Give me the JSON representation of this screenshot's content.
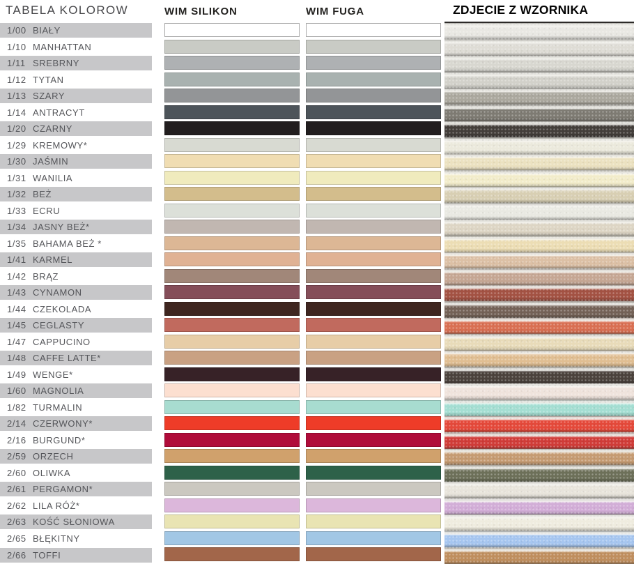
{
  "headers": {
    "tabela": "TABELA KOLOROW",
    "silikon": "WIM SILIKON",
    "fuga": "WIM FUGA",
    "photo": "ZDJECIE Z WZORNIKA"
  },
  "palette": {
    "label_bar_gray": "#c7c7c9",
    "label_text": "#55565a",
    "white_swatch_border": "#a8a8a8",
    "photo_top_line": "#2c2a28"
  },
  "rows": [
    {
      "code": "1/00",
      "name": "BIAŁY",
      "silikon": "#ffffff",
      "fuga": "#ffffff",
      "photo": "#e9e8e3"
    },
    {
      "code": "1/10",
      "name": "MANHATTAN",
      "silikon": "#c9cbc5",
      "fuga": "#c9cbc5",
      "photo": "#dedcd5"
    },
    {
      "code": "1/11",
      "name": "SREBRNY",
      "silikon": "#aeb1b3",
      "fuga": "#aeb1b3",
      "photo": "#d8d7d0"
    },
    {
      "code": "1/12",
      "name": "TYTAN",
      "silikon": "#a9b2b0",
      "fuga": "#a9b2b0",
      "photo": "#d2d1ca"
    },
    {
      "code": "1/13",
      "name": "SZARY",
      "silikon": "#939597",
      "fuga": "#939597",
      "photo": "#aba89e"
    },
    {
      "code": "1/14",
      "name": "ANTRACYT",
      "silikon": "#4d545a",
      "fuga": "#4d545a",
      "photo": "#7e7b73"
    },
    {
      "code": "1/20",
      "name": "CZARNY",
      "silikon": "#221e1f",
      "fuga": "#221e1f",
      "photo": "#433e3a"
    },
    {
      "code": "1/29",
      "name": "KREMOWY*",
      "silikon": "#d8dad2",
      "fuga": "#d8dad2",
      "photo": "#ebe9dc"
    },
    {
      "code": "1/30",
      "name": "JAŚMIN",
      "silikon": "#f0ddb2",
      "fuga": "#f0ddb2",
      "photo": "#ebe1c0"
    },
    {
      "code": "1/31",
      "name": "WANILIA",
      "silikon": "#f0ebbd",
      "fuga": "#f0ebbd",
      "photo": "#f2ecca"
    },
    {
      "code": "1/32",
      "name": "BEŻ",
      "silikon": "#d3bd8c",
      "fuga": "#d3bd8c",
      "photo": "#d8cfb3"
    },
    {
      "code": "1/33",
      "name": "ECRU",
      "silikon": "#dce0d9",
      "fuga": "#dce0d9",
      "photo": "#e9e9e2"
    },
    {
      "code": "1/34",
      "name": "JASNY BEŻ*",
      "silikon": "#c1b7b1",
      "fuga": "#c1b7b1",
      "photo": "#ddd5c4"
    },
    {
      "code": "1/35",
      "name": "BAHAMA BEŻ *",
      "silikon": "#dcb795",
      "fuga": "#dcb795",
      "photo": "#ecddb4"
    },
    {
      "code": "1/41",
      "name": "KARMEL",
      "silikon": "#e0b294",
      "fuga": "#e0b294",
      "photo": "#dcc0a5"
    },
    {
      "code": "1/42",
      "name": "BRĄZ",
      "silikon": "#a18779",
      "fuga": "#a18779",
      "photo": "#c5a693"
    },
    {
      "code": "1/43",
      "name": "CYNAMON",
      "silikon": "#854e59",
      "fuga": "#854e59",
      "photo": "#a35243"
    },
    {
      "code": "1/44",
      "name": "CZEKOLADA",
      "silikon": "#3f2620",
      "fuga": "#3f2620",
      "photo": "#746257"
    },
    {
      "code": "1/45",
      "name": "CEGLASTY",
      "silikon": "#c16a5e",
      "fuga": "#c16a5e",
      "photo": "#d96f52"
    },
    {
      "code": "1/47",
      "name": "CAPPUCINO",
      "silikon": "#e7cda7",
      "fuga": "#e7cda7",
      "photo": "#e8dbb9"
    },
    {
      "code": "1/48",
      "name": "CAFFE LATTE*",
      "silikon": "#c9a183",
      "fuga": "#c9a183",
      "photo": "#e0be92"
    },
    {
      "code": "1/49",
      "name": "WENGE*",
      "silikon": "#372227",
      "fuga": "#372227",
      "photo": "#4b423c"
    },
    {
      "code": "1/60",
      "name": "MAGNOLIA",
      "silikon": "#fcdfd0",
      "fuga": "#fcdfd0",
      "photo": "#efe3dc"
    },
    {
      "code": "1/82",
      "name": "TURMALIN",
      "silikon": "#a8dcd0",
      "fuga": "#a8dcd0",
      "photo": "#a4ded2"
    },
    {
      "code": "2/14",
      "name": "CZERWONY*",
      "silikon": "#ee3c28",
      "fuga": "#ee3c28",
      "photo": "#e4493a"
    },
    {
      "code": "2/16",
      "name": "BURGUND*",
      "silikon": "#b00c3a",
      "fuga": "#b00c3a",
      "photo": "#d03c38"
    },
    {
      "code": "2/59",
      "name": "ORZECH",
      "silikon": "#d0a16c",
      "fuga": "#d0a16c",
      "photo": "#c59b72"
    },
    {
      "code": "2/60",
      "name": "OLIWKA",
      "silikon": "#2e6149",
      "fuga": "#2e6149",
      "photo": "#6d7059"
    },
    {
      "code": "2/61",
      "name": "PERGAMON*",
      "silikon": "#cbc8c0",
      "fuga": "#cbc8c0",
      "photo": "#e8e4db"
    },
    {
      "code": "2/62",
      "name": "LILA RÓŻ*",
      "silikon": "#dcb7db",
      "fuga": "#dcb7db",
      "photo": "#d2add7"
    },
    {
      "code": "2/63",
      "name": "KOŚĆ SŁONIOWA",
      "silikon": "#e9e4b3",
      "fuga": "#e9e4b3",
      "photo": "#efecdf"
    },
    {
      "code": "2/65",
      "name": "BŁĘKITNY",
      "silikon": "#a2c7e5",
      "fuga": "#a2c7e5",
      "photo": "#a6c6f0"
    },
    {
      "code": "2/66",
      "name": "TOFFI",
      "silikon": "#a2664a",
      "fuga": "#a2664a",
      "photo": "#bf8e5e"
    }
  ]
}
